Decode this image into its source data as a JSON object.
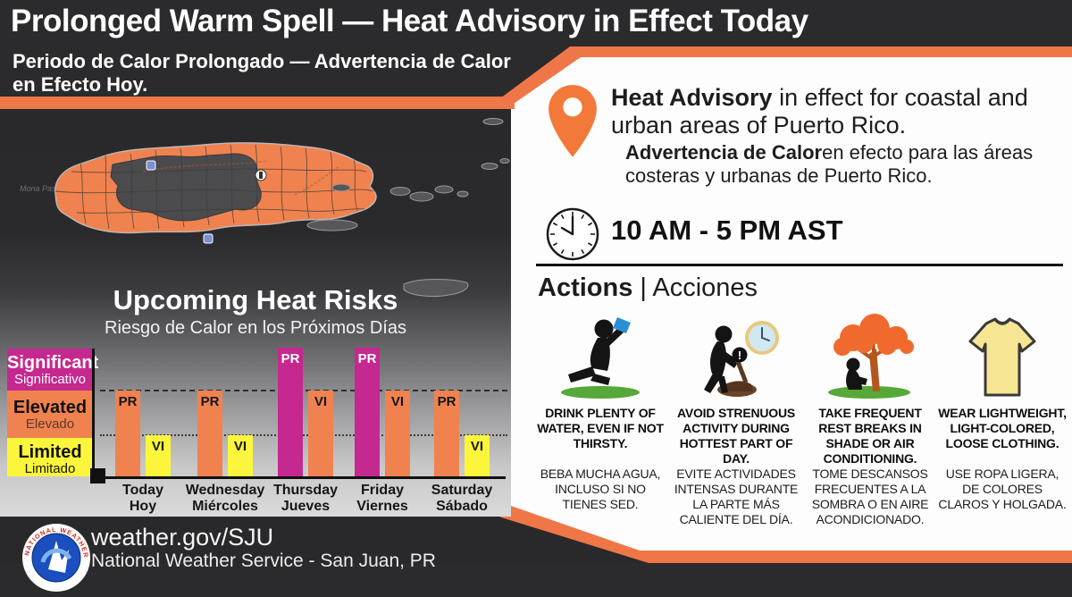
{
  "header": {
    "title": "Prolonged Warm Spell — Heat Advisory in Effect Today",
    "subtitle": "Periodo de Calor Prolongado — Advertencia de Calor en Efecto Hoy."
  },
  "map": {
    "passage_label": "Mona Passage"
  },
  "chart_data": {
    "type": "bar",
    "title": "Upcoming Heat Risks",
    "subtitle": "Riesgo de Calor en los Próximos Días",
    "categories": [
      "Today",
      "Wednesday",
      "Thursday",
      "Friday",
      "Saturday"
    ],
    "categories_es": [
      "Hoy",
      "Miércoles",
      "Jueves",
      "Viernes",
      "Sábado"
    ],
    "series": [
      {
        "name": "PR",
        "values": [
          "Elevated",
          "Elevated",
          "Significant",
          "Significant",
          "Elevated"
        ]
      },
      {
        "name": "VI",
        "values": [
          "Limited",
          "Limited",
          "Elevated",
          "Elevated",
          "Limited"
        ]
      }
    ],
    "levels": [
      {
        "en": "Significant",
        "es": "Significativo",
        "color": "#c5288e",
        "text_color": "#ffffff",
        "rank": 3
      },
      {
        "en": "Elevated",
        "es": "Elevado",
        "color": "#f0824f",
        "text_color": "#161616",
        "rank": 2
      },
      {
        "en": "Limited",
        "es": "Limitado",
        "color": "#fbf63b",
        "text_color": "#161616",
        "rank": 1
      }
    ],
    "grid": "threshold dashed line at Significant boundary, dotted line at Elevated boundary",
    "legend_position": "left"
  },
  "advisory": {
    "en_bold": "Heat Advisory",
    "en_rest": " in effect for coastal and urban areas of Puerto Rico.",
    "es_bold": "Advertencia de Calor",
    "es_rest": "en efecto para las áreas costeras y urbanas de Puerto Rico.",
    "time": "10 AM - 5 PM AST"
  },
  "actions": {
    "title_en": "Actions",
    "title_es": " | Acciones",
    "items": [
      {
        "icon": "drink-water-icon",
        "en": "DRINK PLENTY OF WATER, EVEN IF NOT THIRSTY.",
        "es": "BEBA MUCHA AGUA, INCLUSO SI NO TIENES SED."
      },
      {
        "icon": "avoid-strenuous-activity-icon",
        "en": "AVOID STRENUOUS ACTIVITY DURING HOTTEST PART OF DAY.",
        "es": "EVITE ACTIVIDADES INTENSAS DURANTE LA PARTE MÁS CALIENTE DEL DÍA."
      },
      {
        "icon": "rest-in-shade-icon",
        "en": "TAKE FREQUENT REST BREAKS IN SHADE OR AIR CONDITIONING.",
        "es": "TOME DESCANSOS FRECUENTES A LA SOMBRA O EN AIRE ACONDICIONADO."
      },
      {
        "icon": "light-clothing-icon",
        "en": "WEAR LIGHTWEIGHT, LIGHT-COLORED, LOOSE CLOTHING.",
        "es": "USE ROPA LIGERA, DE COLORES CLAROS Y HOLGADA."
      }
    ]
  },
  "footer": {
    "url": "weather.gov/SJU",
    "org": "National Weather Service - San Juan, PR",
    "logo_text": "NATIONAL WEATHER SERVICE"
  },
  "colors": {
    "accent_orange": "#ef7747",
    "significant_magenta": "#c5288e",
    "elevated_orange": "#f0824f",
    "limited_yellow": "#fbf63b",
    "header_bg": "#2b2b2d"
  }
}
